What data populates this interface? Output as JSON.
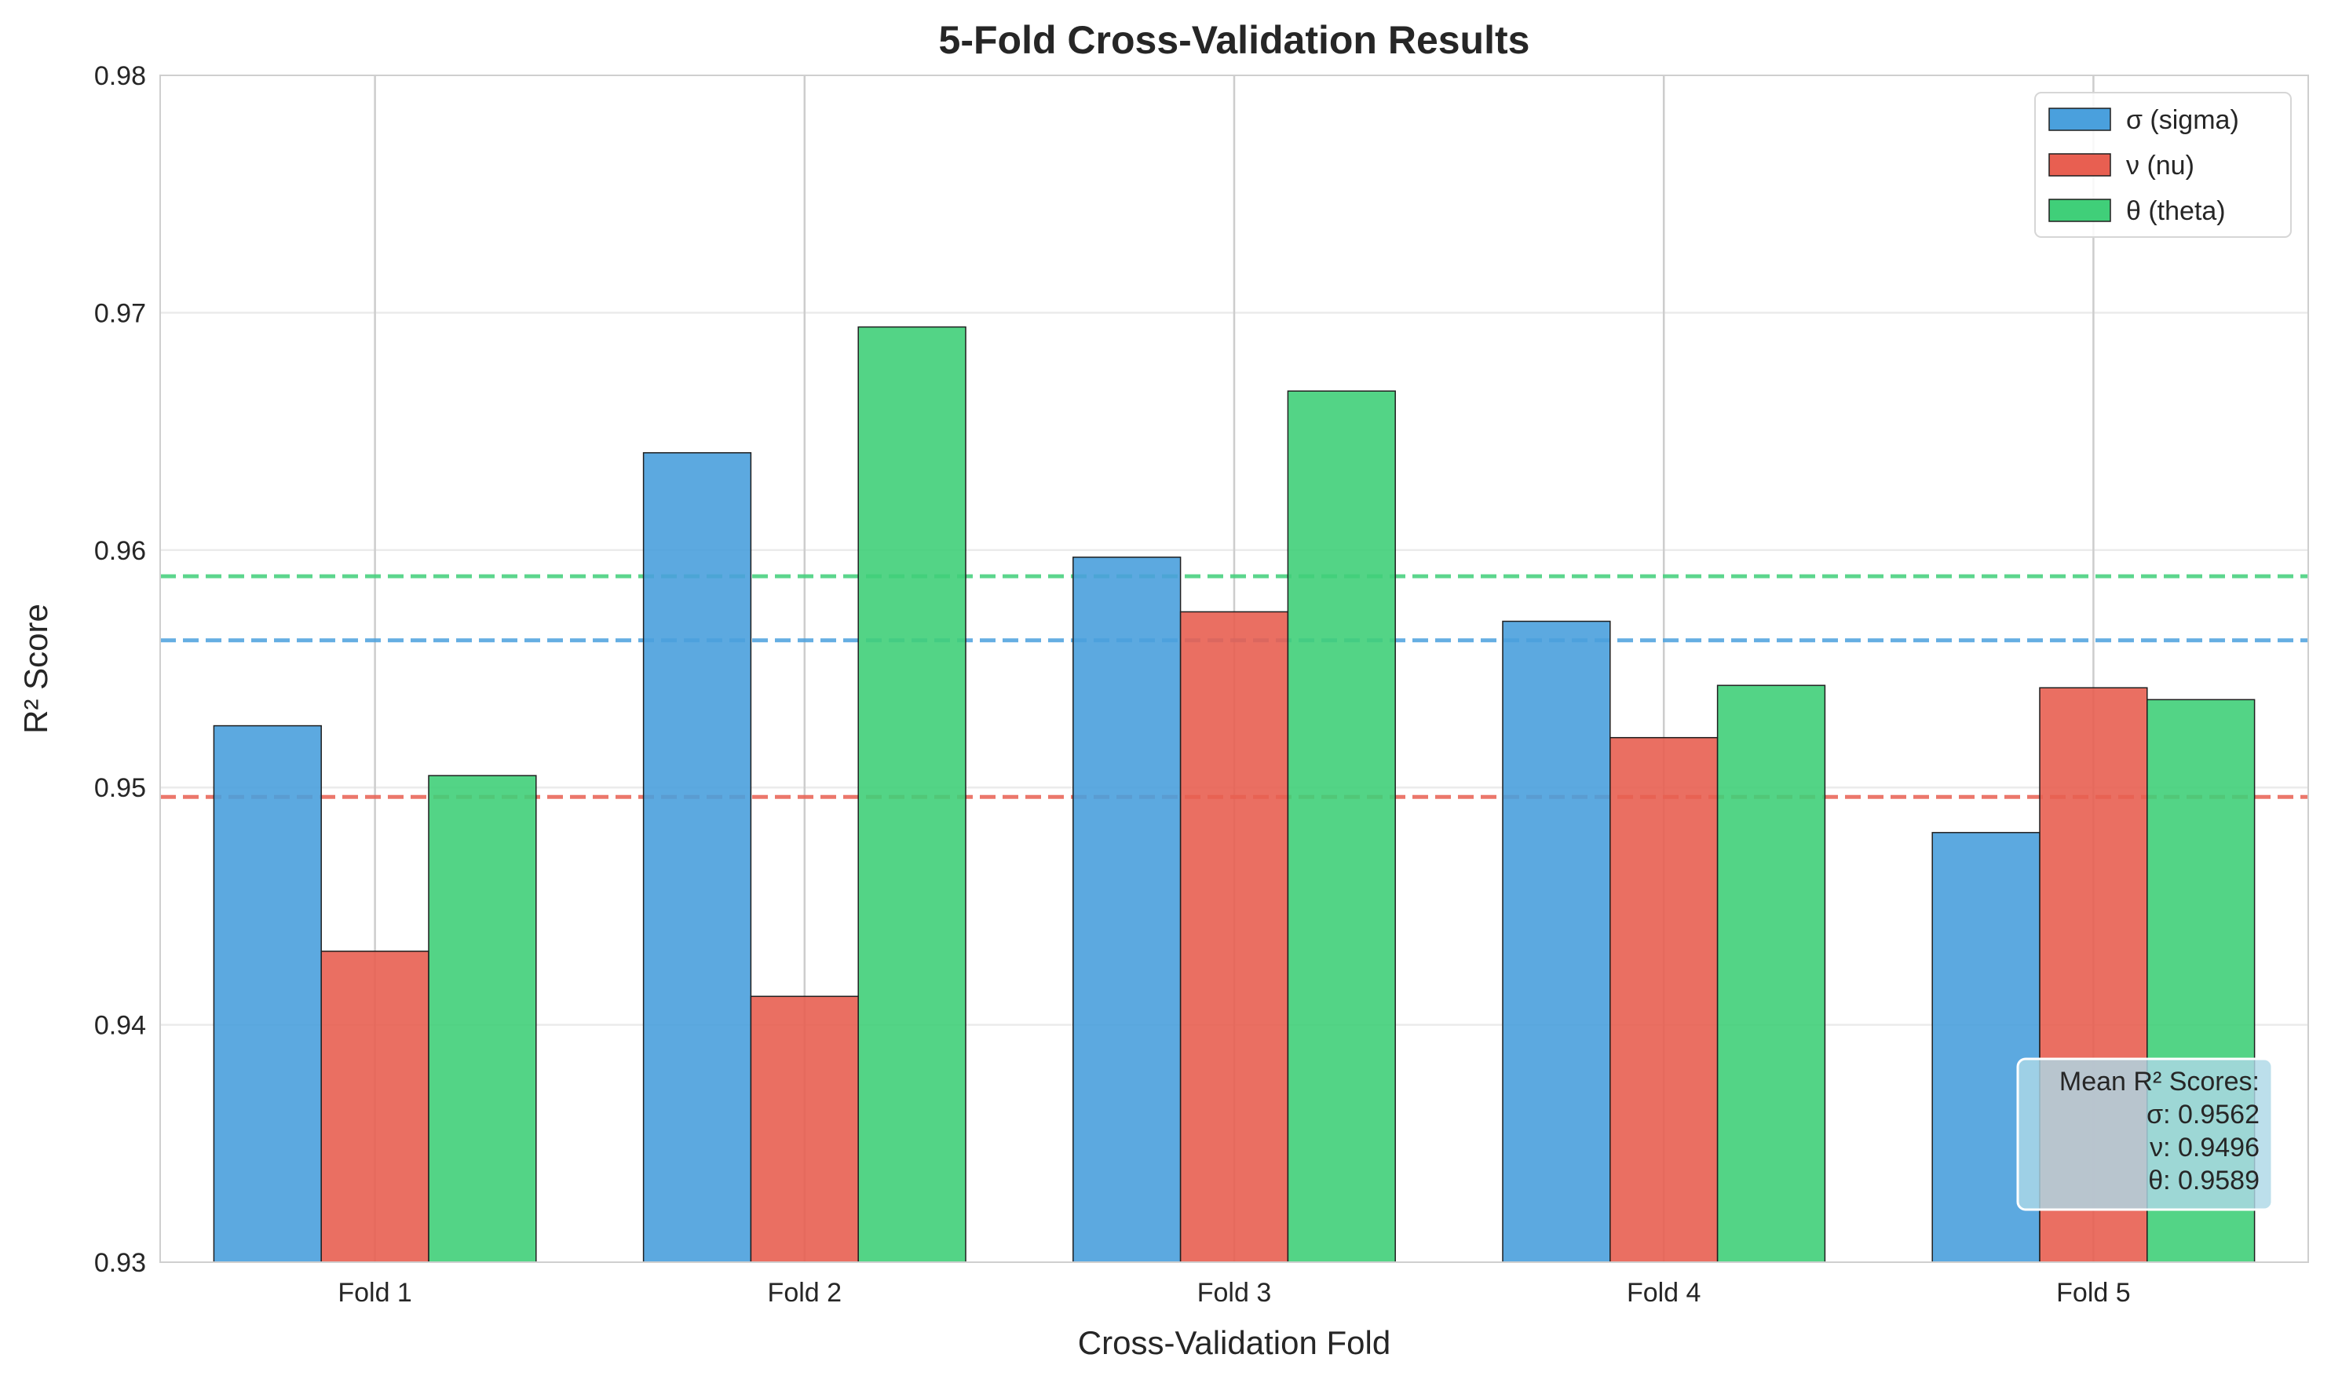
{
  "chart_data": {
    "type": "bar",
    "title": "5-Fold Cross-Validation Results",
    "xlabel": "Cross-Validation Fold",
    "ylabel": "R² Score",
    "ylim": [
      0.93,
      0.98
    ],
    "yticks": [
      "0.93",
      "0.94",
      "0.95",
      "0.96",
      "0.97",
      "0.98"
    ],
    "categories": [
      "Fold 1",
      "Fold 2",
      "Fold 3",
      "Fold 4",
      "Fold 5"
    ],
    "grid": true,
    "legend_position": "top-right",
    "series": [
      {
        "name": "σ (sigma)",
        "color": "#4aa0dd",
        "values": [
          0.9526,
          0.9641,
          0.9597,
          0.957,
          0.9481
        ],
        "mean": 0.9562
      },
      {
        "name": "ν (nu)",
        "color": "#e85f51",
        "values": [
          0.9431,
          0.9412,
          0.9574,
          0.9521,
          0.9542
        ],
        "mean": 0.9496
      },
      {
        "name": "θ (theta)",
        "color": "#40cf79",
        "values": [
          0.9505,
          0.9694,
          0.9667,
          0.9543,
          0.9537
        ],
        "mean": 0.9589
      }
    ],
    "stats_box": {
      "title": "Mean R² Scores:",
      "lines": [
        "σ: 0.9562",
        "ν: 0.9496",
        "θ: 0.9589"
      ]
    }
  }
}
